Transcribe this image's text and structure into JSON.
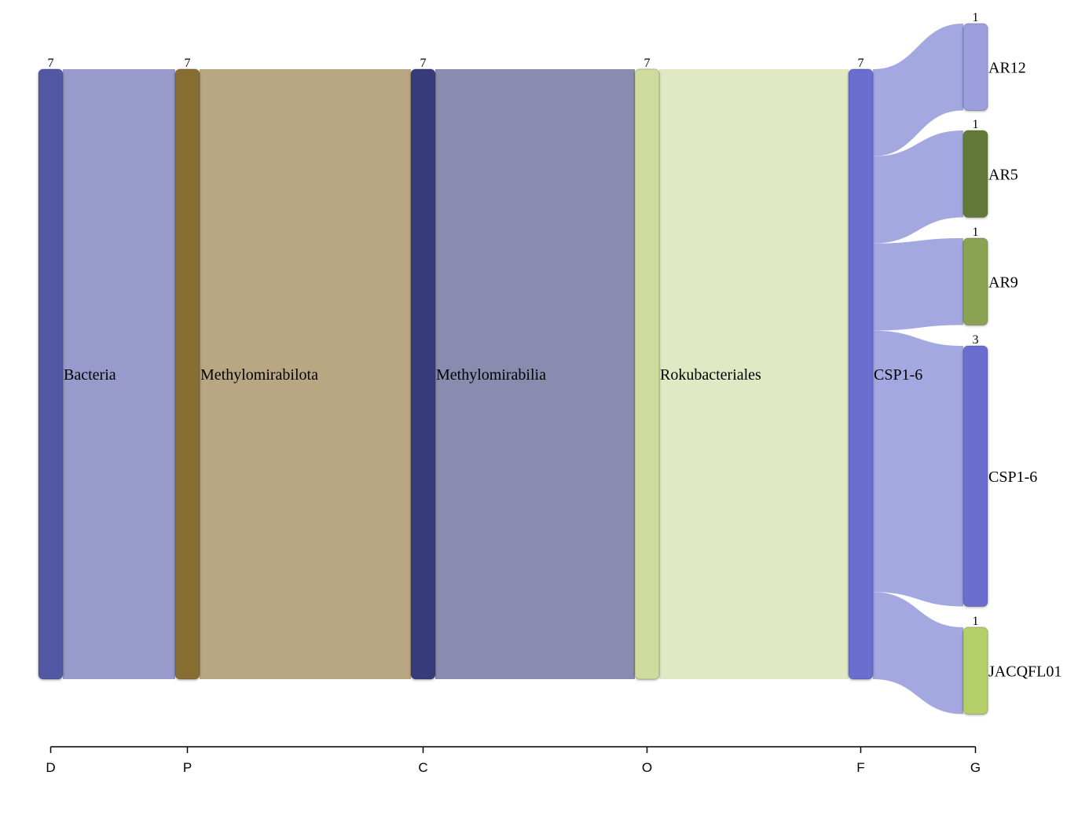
{
  "chart_data": {
    "type": "sankey",
    "levels": [
      "D",
      "P",
      "C",
      "O",
      "F",
      "G"
    ],
    "nodes": [
      {
        "id": "bacteria",
        "name": "Bacteria",
        "level": "D",
        "value": 7,
        "color": "#5259a5",
        "flow_color": "#979acb"
      },
      {
        "id": "methylomirabilota",
        "name": "Methylomirabilota",
        "level": "P",
        "value": 7,
        "color": "#886d33",
        "flow_color": "#b9a783"
      },
      {
        "id": "methylomirabilia",
        "name": "Methylomirabilia",
        "level": "C",
        "value": 7,
        "color": "#393b79",
        "flow_color": "#898cae"
      },
      {
        "id": "rokubacteriales",
        "name": "Rokubacteriales",
        "level": "O",
        "value": 7,
        "color": "#cedb9c",
        "flow_color": "#e1e9c4"
      },
      {
        "id": "csp16f",
        "name": "CSP1-6",
        "level": "F",
        "value": 7,
        "color": "#6b6ecf",
        "flow_color": "#a3a8e1"
      },
      {
        "id": "ar12",
        "name": "AR12",
        "level": "G",
        "value": 1,
        "color": "#9c9ede"
      },
      {
        "id": "ar5",
        "name": "AR5",
        "level": "G",
        "value": 1,
        "color": "#637939"
      },
      {
        "id": "ar9",
        "name": "AR9",
        "level": "G",
        "value": 1,
        "color": "#8ca252"
      },
      {
        "id": "csp16g",
        "name": "CSP1-6",
        "level": "G",
        "value": 3,
        "color": "#6b6ecf"
      },
      {
        "id": "jacqfl01",
        "name": "JACQFL01",
        "level": "G",
        "value": 1,
        "color": "#b5cf6b"
      }
    ],
    "links": [
      {
        "source": "bacteria",
        "target": "methylomirabilota",
        "value": 7
      },
      {
        "source": "methylomirabilota",
        "target": "methylomirabilia",
        "value": 7
      },
      {
        "source": "methylomirabilia",
        "target": "rokubacteriales",
        "value": 7
      },
      {
        "source": "rokubacteriales",
        "target": "csp16f",
        "value": 7
      },
      {
        "source": "csp16f",
        "target": "ar12",
        "value": 1
      },
      {
        "source": "csp16f",
        "target": "ar5",
        "value": 1
      },
      {
        "source": "csp16f",
        "target": "ar9",
        "value": 1
      },
      {
        "source": "csp16f",
        "target": "csp16g",
        "value": 3
      },
      {
        "source": "csp16f",
        "target": "jacqfl01",
        "value": 1
      }
    ]
  }
}
